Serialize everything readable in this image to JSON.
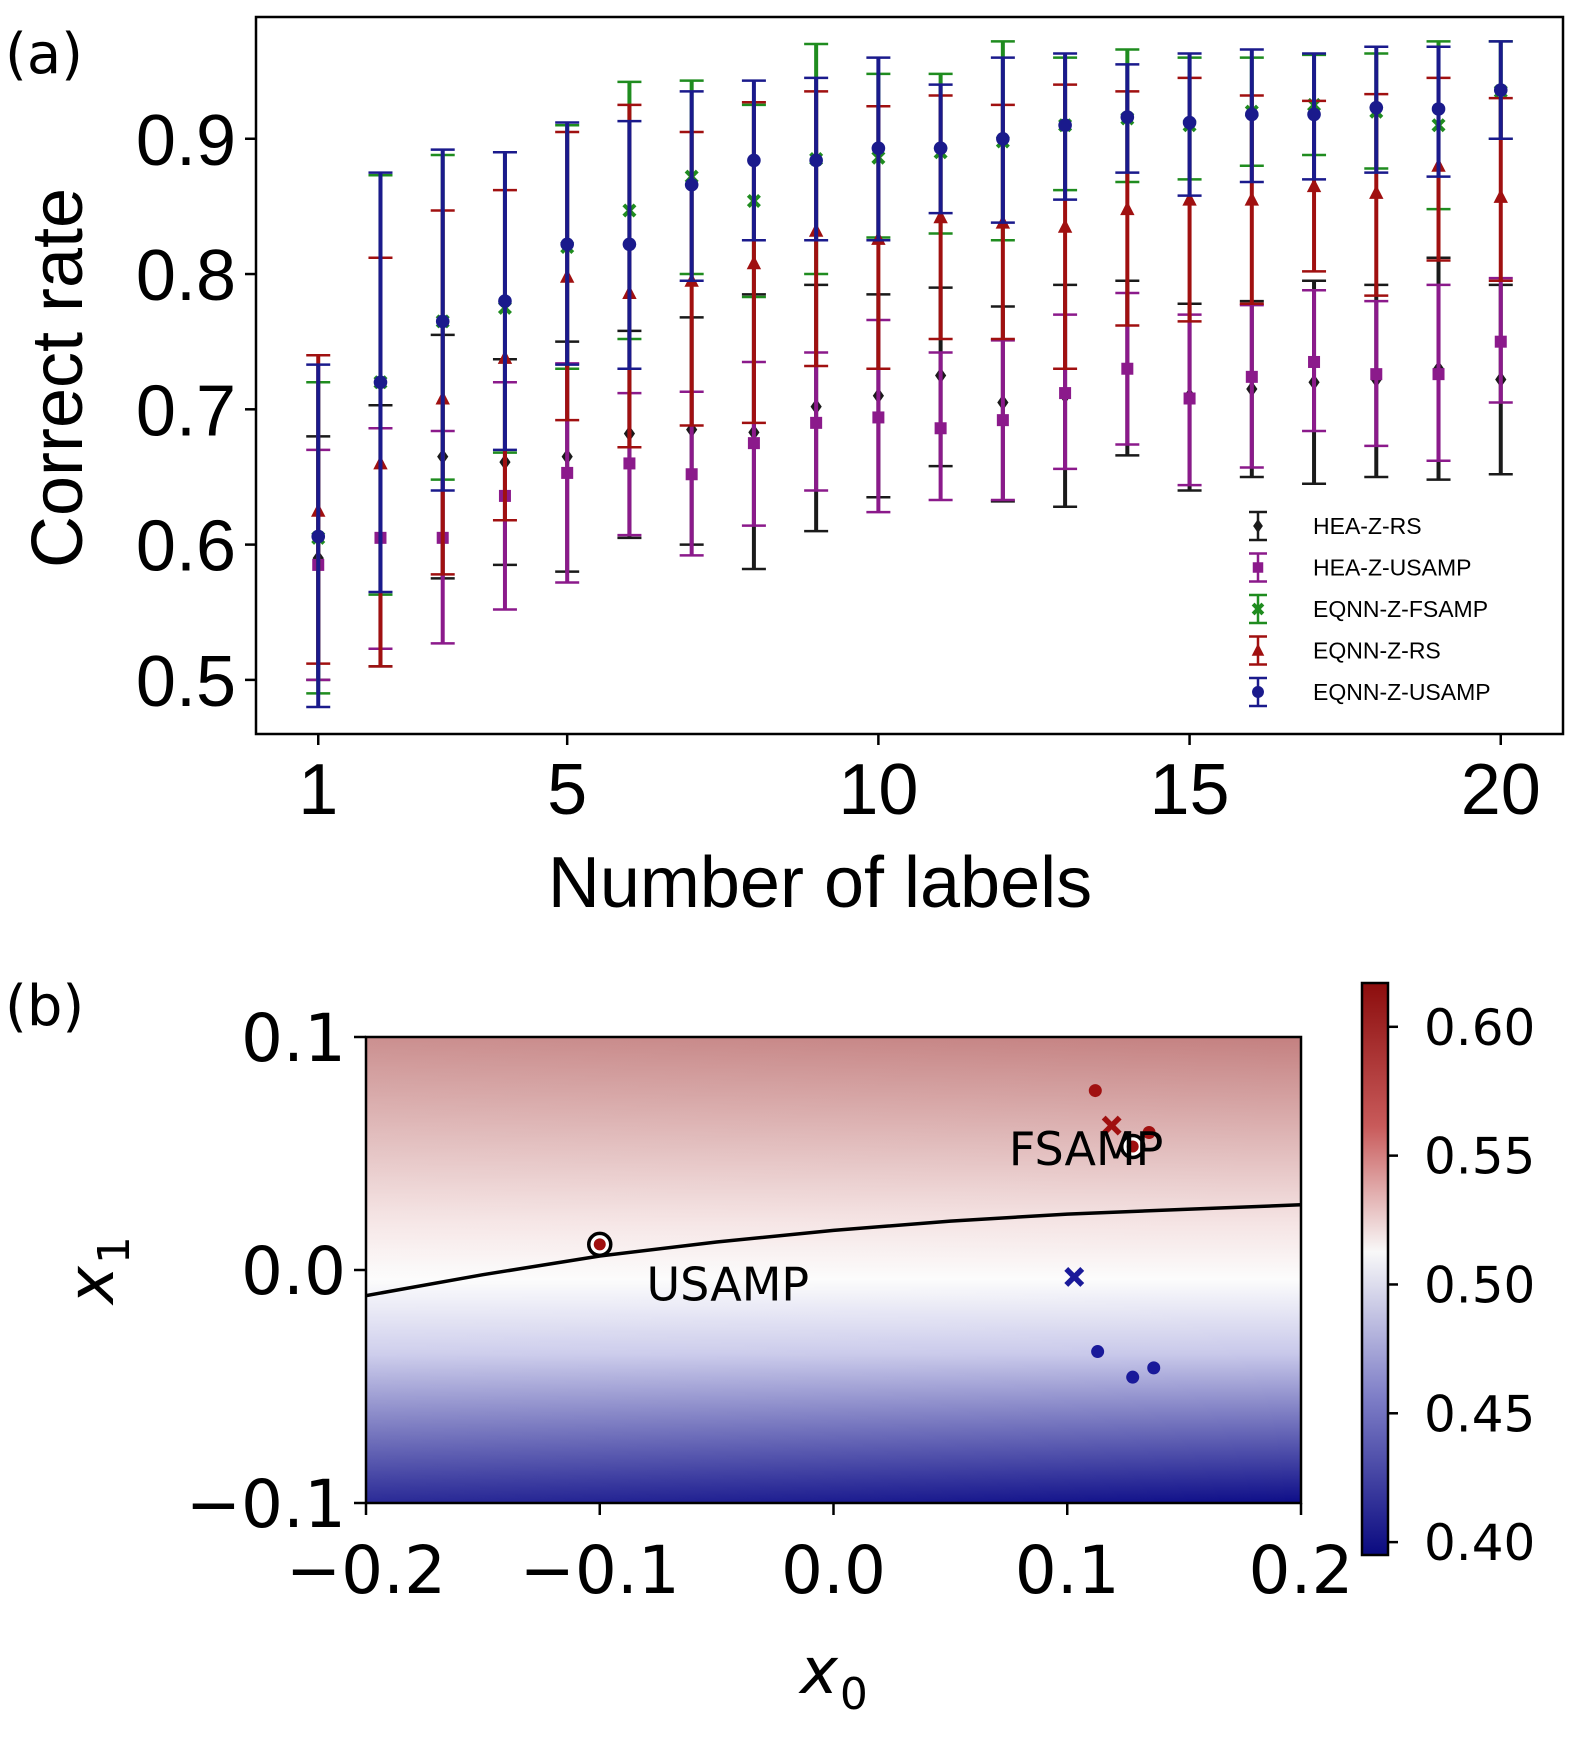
{
  "chart_data": [
    {
      "panel": "(a)",
      "type": "scatter",
      "xlabel": "Number of labels",
      "ylabel": "Correct rate",
      "xlim": [
        0,
        21
      ],
      "ylim": [
        0.46,
        0.99
      ],
      "xticks": [
        1,
        5,
        10,
        15,
        20
      ],
      "yticks": [
        0.5,
        0.6,
        0.7,
        0.8,
        0.9
      ],
      "ytick_labels": [
        "0.5",
        "0.6",
        "0.7",
        "0.8",
        "0.9"
      ],
      "legend_position": "bottom-right",
      "x": [
        1,
        2,
        3,
        4,
        5,
        6,
        7,
        8,
        9,
        10,
        11,
        12,
        13,
        14,
        15,
        16,
        17,
        18,
        19,
        20
      ],
      "series": [
        {
          "name": "HEA-Z-RS",
          "color": "#1a1a1a",
          "marker": "diamond",
          "values": [
            0.59,
            0.605,
            0.665,
            0.661,
            0.665,
            0.682,
            0.685,
            0.683,
            0.702,
            0.71,
            0.725,
            0.705,
            0.71,
            0.73,
            0.71,
            0.715,
            0.72,
            0.722,
            0.73,
            0.722
          ],
          "err_low": [
            0.5,
            0.51,
            0.575,
            0.585,
            0.58,
            0.605,
            0.6,
            0.582,
            0.61,
            0.635,
            0.658,
            0.632,
            0.628,
            0.666,
            0.64,
            0.65,
            0.645,
            0.65,
            0.648,
            0.652
          ],
          "err_high": [
            0.68,
            0.703,
            0.755,
            0.737,
            0.75,
            0.758,
            0.768,
            0.785,
            0.792,
            0.785,
            0.79,
            0.776,
            0.792,
            0.795,
            0.778,
            0.78,
            0.795,
            0.792,
            0.812,
            0.792
          ]
        },
        {
          "name": "HEA-Z-USAMP",
          "color": "#8b1a8b",
          "marker": "square",
          "values": [
            0.585,
            0.605,
            0.605,
            0.636,
            0.653,
            0.66,
            0.652,
            0.675,
            0.69,
            0.694,
            0.686,
            0.692,
            0.712,
            0.73,
            0.708,
            0.724,
            0.735,
            0.726,
            0.726,
            0.75
          ],
          "err_low": [
            0.5,
            0.523,
            0.527,
            0.552,
            0.572,
            0.607,
            0.592,
            0.614,
            0.64,
            0.624,
            0.633,
            0.633,
            0.656,
            0.674,
            0.644,
            0.657,
            0.684,
            0.673,
            0.662,
            0.705
          ],
          "err_high": [
            0.67,
            0.686,
            0.684,
            0.72,
            0.734,
            0.712,
            0.713,
            0.735,
            0.742,
            0.766,
            0.742,
            0.751,
            0.77,
            0.786,
            0.77,
            0.777,
            0.788,
            0.78,
            0.792,
            0.797
          ]
        },
        {
          "name": "EQNN-Z-FSAMP",
          "color": "#1f8c1f",
          "marker": "x",
          "values": [
            0.605,
            0.72,
            0.765,
            0.775,
            0.82,
            0.847,
            0.872,
            0.854,
            0.885,
            0.886,
            0.89,
            0.898,
            0.91,
            0.915,
            0.91,
            0.92,
            0.925,
            0.92,
            0.91,
            0.935
          ],
          "err_low": [
            0.49,
            0.563,
            0.648,
            0.668,
            0.73,
            0.752,
            0.8,
            0.783,
            0.8,
            0.827,
            0.83,
            0.825,
            0.862,
            0.868,
            0.87,
            0.88,
            0.888,
            0.878,
            0.848,
            0.9
          ],
          "err_high": [
            0.72,
            0.873,
            0.888,
            0.89,
            0.91,
            0.942,
            0.943,
            0.925,
            0.97,
            0.948,
            0.948,
            0.972,
            0.96,
            0.966,
            0.96,
            0.96,
            0.962,
            0.963,
            0.972,
            0.972
          ]
        },
        {
          "name": "EQNN-Z-RS",
          "color": "#a01010",
          "marker": "triangle",
          "values": [
            0.625,
            0.66,
            0.708,
            0.738,
            0.798,
            0.786,
            0.795,
            0.808,
            0.832,
            0.826,
            0.842,
            0.838,
            0.835,
            0.848,
            0.855,
            0.855,
            0.865,
            0.86,
            0.88,
            0.857
          ],
          "err_low": [
            0.512,
            0.51,
            0.578,
            0.618,
            0.692,
            0.672,
            0.688,
            0.69,
            0.732,
            0.73,
            0.752,
            0.752,
            0.73,
            0.762,
            0.765,
            0.778,
            0.802,
            0.784,
            0.81,
            0.795
          ],
          "err_high": [
            0.74,
            0.812,
            0.847,
            0.862,
            0.905,
            0.925,
            0.905,
            0.927,
            0.935,
            0.924,
            0.932,
            0.925,
            0.94,
            0.935,
            0.945,
            0.932,
            0.928,
            0.933,
            0.945,
            0.93
          ]
        },
        {
          "name": "EQNN-Z-USAMP",
          "color": "#1a1a8c",
          "marker": "circle",
          "values": [
            0.606,
            0.72,
            0.765,
            0.78,
            0.822,
            0.822,
            0.866,
            0.884,
            0.884,
            0.893,
            0.893,
            0.9,
            0.91,
            0.916,
            0.912,
            0.918,
            0.918,
            0.923,
            0.922,
            0.936
          ],
          "err_low": [
            0.48,
            0.565,
            0.64,
            0.67,
            0.733,
            0.73,
            0.795,
            0.825,
            0.825,
            0.825,
            0.845,
            0.838,
            0.855,
            0.875,
            0.858,
            0.868,
            0.87,
            0.875,
            0.872,
            0.9
          ],
          "err_high": [
            0.733,
            0.875,
            0.892,
            0.89,
            0.912,
            0.913,
            0.935,
            0.943,
            0.945,
            0.96,
            0.94,
            0.96,
            0.963,
            0.955,
            0.963,
            0.966,
            0.963,
            0.968,
            0.968,
            0.972
          ]
        }
      ]
    },
    {
      "panel": "(b)",
      "type": "heatmap",
      "xlim": [
        -0.2,
        0.2
      ],
      "ylim": [
        -0.1,
        0.1
      ],
      "xticks": [
        -0.2,
        -0.1,
        0.0,
        0.1,
        0.2
      ],
      "xtick_labels": [
        "−0.2",
        "−0.1",
        "0.0",
        "0.1",
        "0.2"
      ],
      "yticks": [
        -0.1,
        0.0,
        0.1
      ],
      "ytick_labels": [
        "−0.1",
        "0.0",
        "0.1"
      ],
      "xlabel": {
        "base": "x",
        "sub": "0"
      },
      "ylabel": {
        "base": "x",
        "sub": "1"
      },
      "colorbar": {
        "range": [
          0.395,
          0.617
        ],
        "ticks": [
          0.4,
          0.45,
          0.5,
          0.55,
          0.6
        ],
        "tick_labels": [
          "0.40",
          "0.45",
          "0.50",
          "0.55",
          "0.60"
        ],
        "colors": {
          "low": "#0a0a80",
          "mid": "#f8f8f8",
          "high": "#8c0d0d"
        }
      },
      "boundary": {
        "x": [
          -0.2,
          -0.15,
          -0.1,
          -0.05,
          0.0,
          0.05,
          0.1,
          0.15,
          0.2
        ],
        "y": [
          -0.011,
          -0.002,
          0.006,
          0.012,
          0.017,
          0.021,
          0.024,
          0.026,
          0.028
        ]
      },
      "points": [
        {
          "x": 0.112,
          "y": 0.077,
          "kind": "dot",
          "color": "#a01010"
        },
        {
          "x": 0.135,
          "y": 0.059,
          "kind": "dot",
          "color": "#a01010"
        },
        {
          "x": 0.128,
          "y": 0.053,
          "kind": "circled-dot",
          "color": "#a01010"
        },
        {
          "x": 0.119,
          "y": 0.062,
          "kind": "x",
          "color": "#a01010"
        },
        {
          "x": -0.1,
          "y": 0.011,
          "kind": "circled-dot",
          "color": "#a01010"
        },
        {
          "x": 0.103,
          "y": -0.003,
          "kind": "x",
          "color": "#1a1a9a"
        },
        {
          "x": 0.113,
          "y": -0.035,
          "kind": "dot",
          "color": "#1a1a9a"
        },
        {
          "x": 0.128,
          "y": -0.046,
          "kind": "dot",
          "color": "#1a1a9a"
        },
        {
          "x": 0.137,
          "y": -0.042,
          "kind": "dot",
          "color": "#1a1a9a"
        }
      ],
      "annotations": [
        {
          "text": "FSAMP",
          "x": 0.075,
          "y": 0.045
        },
        {
          "text": "USAMP",
          "x": -0.08,
          "y": -0.013
        }
      ]
    }
  ]
}
